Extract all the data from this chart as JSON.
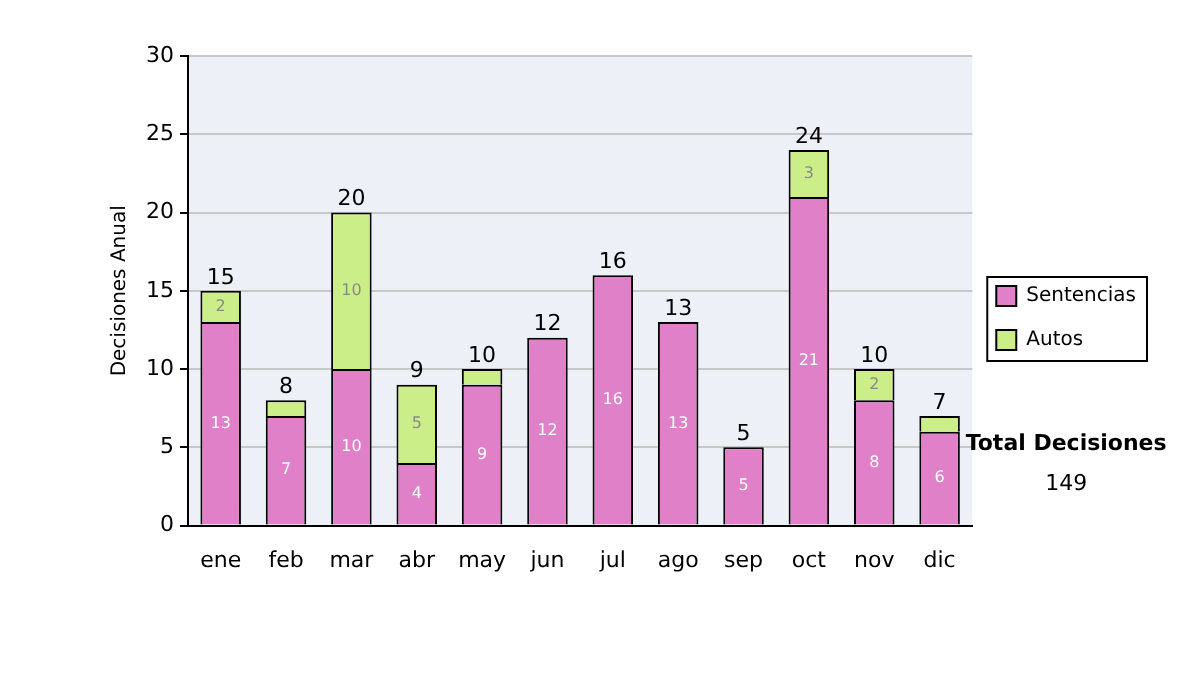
{
  "chart_data": {
    "type": "bar",
    "stacked": true,
    "ylabel": "Decisiones Anual",
    "categories": [
      "ene",
      "feb",
      "mar",
      "abr",
      "may",
      "jun",
      "jul",
      "ago",
      "sep",
      "oct",
      "nov",
      "dic"
    ],
    "series": [
      {
        "name": "Sentencias",
        "color": "#e080c8",
        "values": [
          13,
          7,
          10,
          4,
          9,
          12,
          16,
          13,
          5,
          21,
          8,
          6
        ],
        "value_labels": [
          "13",
          "7",
          "10",
          "4",
          "9",
          "12",
          "16",
          "13",
          "5",
          "21",
          "8",
          "6"
        ]
      },
      {
        "name": "Autos",
        "color": "#ccee88",
        "values": [
          2,
          1,
          10,
          5,
          1,
          0,
          0,
          0,
          0,
          3,
          2,
          1
        ],
        "value_labels": [
          "2",
          null,
          "10",
          "5",
          null,
          null,
          null,
          null,
          null,
          "3",
          "2",
          null
        ]
      }
    ],
    "totals": [
      "15",
      "8",
      "20",
      "9",
      "10",
      "12",
      "16",
      "13",
      "5",
      "24",
      "10",
      "7"
    ],
    "ylim": [
      0,
      30
    ],
    "yticks": [
      0,
      5,
      10,
      15,
      20,
      25,
      30
    ],
    "grid": "y",
    "legend": "right",
    "annotations": [
      "Total Decisiones",
      "149"
    ]
  }
}
